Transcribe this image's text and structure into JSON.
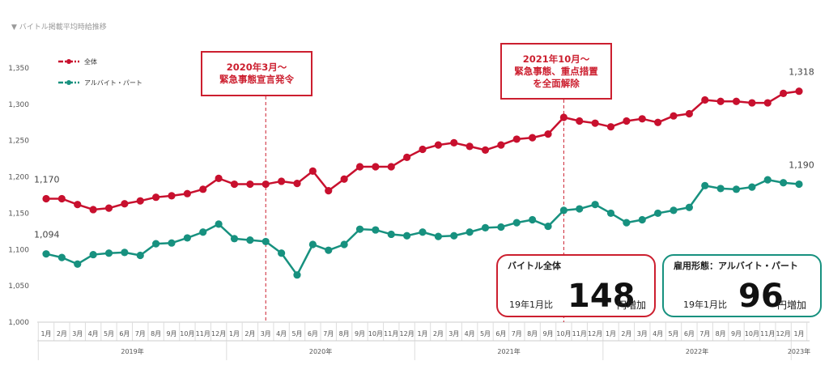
{
  "page_title": "▼ バイトル掲載平均時給推移",
  "colors": {
    "total": "#c8102e",
    "parttime": "#17917f",
    "annotation": "#cc1f2f",
    "axis": "#cccccc"
  },
  "chart_data": {
    "type": "line",
    "x": [
      "2019-01",
      "2019-02",
      "2019-03",
      "2019-04",
      "2019-05",
      "2019-06",
      "2019-07",
      "2019-08",
      "2019-09",
      "2019-10",
      "2019-11",
      "2019-12",
      "2020-01",
      "2020-02",
      "2020-03",
      "2020-04",
      "2020-05",
      "2020-06",
      "2020-07",
      "2020-08",
      "2020-09",
      "2020-10",
      "2020-11",
      "2020-12",
      "2021-01",
      "2021-02",
      "2021-03",
      "2021-04",
      "2021-05",
      "2021-06",
      "2021-07",
      "2021-08",
      "2021-09",
      "2021-10",
      "2021-11",
      "2021-12",
      "2022-01",
      "2022-02",
      "2022-03",
      "2022-04",
      "2022-05",
      "2022-06",
      "2022-07",
      "2022-08",
      "2022-09",
      "2022-10",
      "2022-11",
      "2022-12",
      "2023-01"
    ],
    "month_labels": [
      "1月",
      "2月",
      "3月",
      "4月",
      "5月",
      "6月",
      "7月",
      "8月",
      "9月",
      "10月",
      "11月",
      "12月",
      "1月",
      "2月",
      "3月",
      "4月",
      "5月",
      "6月",
      "7月",
      "8月",
      "9月",
      "10月",
      "11月",
      "12月",
      "1月",
      "2月",
      "3月",
      "4月",
      "5月",
      "6月",
      "7月",
      "8月",
      "9月",
      "10月",
      "11月",
      "12月",
      "1月",
      "2月",
      "3月",
      "4月",
      "5月",
      "6月",
      "7月",
      "8月",
      "9月",
      "10月",
      "11月",
      "12月",
      "1月"
    ],
    "year_labels": [
      "2019年",
      "2020年",
      "2021年",
      "2022年",
      "2023年"
    ],
    "series": [
      {
        "name": "全体",
        "color": "#c8102e",
        "values": [
          1170,
          1170,
          1162,
          1155,
          1157,
          1163,
          1167,
          1172,
          1174,
          1177,
          1183,
          1198,
          1190,
          1190,
          1190,
          1194,
          1191,
          1208,
          1181,
          1197,
          1214,
          1214,
          1214,
          1227,
          1238,
          1244,
          1247,
          1242,
          1237,
          1244,
          1252,
          1254,
          1259,
          1282,
          1277,
          1274,
          1269,
          1277,
          1280,
          1275,
          1284,
          1287,
          1306,
          1304,
          1304,
          1302,
          1302,
          1315,
          1318
        ]
      },
      {
        "name": "アルバイト・パート",
        "color": "#17917f",
        "values": [
          1094,
          1089,
          1080,
          1093,
          1095,
          1096,
          1092,
          1108,
          1109,
          1116,
          1124,
          1135,
          1115,
          1113,
          1111,
          1095,
          1065,
          1107,
          1099,
          1107,
          1128,
          1127,
          1121,
          1119,
          1124,
          1118,
          1119,
          1124,
          1130,
          1131,
          1137,
          1141,
          1132,
          1154,
          1156,
          1162,
          1150,
          1137,
          1141,
          1150,
          1154,
          1158,
          1188,
          1184,
          1183,
          1186,
          1196,
          1192,
          1190
        ]
      }
    ],
    "yticks": [
      "1,000",
      "1,050",
      "1,100",
      "1,150",
      "1,200",
      "1,250",
      "1,300",
      "1,350"
    ],
    "ylim": [
      1000,
      1350
    ],
    "start_labels": [
      "1,170",
      "1,094"
    ],
    "end_labels": [
      "1,318",
      "1,190"
    ],
    "annotations": [
      {
        "lines": [
          "2020年3月～",
          "緊急事態宣言発令"
        ],
        "at": "2020-03"
      },
      {
        "lines": [
          "2021年10月～",
          "緊急事態、重点措置",
          "を全面解除"
        ],
        "at": "2021-10"
      }
    ],
    "legend_position": "top-left",
    "grid": false
  },
  "callouts": {
    "total": {
      "title": "バイトル全体",
      "base": "19年1月比",
      "number": "148",
      "unit": "円増加"
    },
    "parttime": {
      "title": "雇用形態：アルバイト・パート",
      "base": "19年1月比",
      "number": "96",
      "unit": "円増加"
    }
  }
}
